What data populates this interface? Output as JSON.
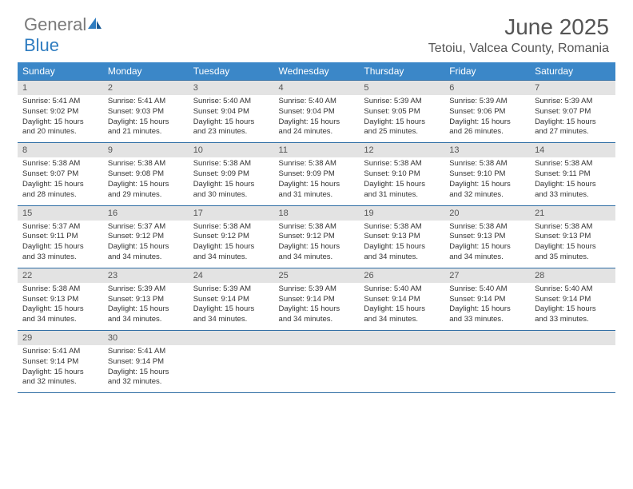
{
  "logo": {
    "text1": "General",
    "text2": "Blue"
  },
  "title": "June 2025",
  "location": "Tetoiu, Valcea County, Romania",
  "colors": {
    "header_bg": "#3b87c8",
    "header_text": "#ffffff",
    "border": "#2e6da4",
    "daynum_bg": "#e3e3e3",
    "body_text": "#333333",
    "title_text": "#555555"
  },
  "dayHeaders": [
    "Sunday",
    "Monday",
    "Tuesday",
    "Wednesday",
    "Thursday",
    "Friday",
    "Saturday"
  ],
  "weeks": [
    [
      {
        "n": "1",
        "sr": "5:41 AM",
        "ss": "9:02 PM",
        "dl": "15 hours and 20 minutes."
      },
      {
        "n": "2",
        "sr": "5:41 AM",
        "ss": "9:03 PM",
        "dl": "15 hours and 21 minutes."
      },
      {
        "n": "3",
        "sr": "5:40 AM",
        "ss": "9:04 PM",
        "dl": "15 hours and 23 minutes."
      },
      {
        "n": "4",
        "sr": "5:40 AM",
        "ss": "9:04 PM",
        "dl": "15 hours and 24 minutes."
      },
      {
        "n": "5",
        "sr": "5:39 AM",
        "ss": "9:05 PM",
        "dl": "15 hours and 25 minutes."
      },
      {
        "n": "6",
        "sr": "5:39 AM",
        "ss": "9:06 PM",
        "dl": "15 hours and 26 minutes."
      },
      {
        "n": "7",
        "sr": "5:39 AM",
        "ss": "9:07 PM",
        "dl": "15 hours and 27 minutes."
      }
    ],
    [
      {
        "n": "8",
        "sr": "5:38 AM",
        "ss": "9:07 PM",
        "dl": "15 hours and 28 minutes."
      },
      {
        "n": "9",
        "sr": "5:38 AM",
        "ss": "9:08 PM",
        "dl": "15 hours and 29 minutes."
      },
      {
        "n": "10",
        "sr": "5:38 AM",
        "ss": "9:09 PM",
        "dl": "15 hours and 30 minutes."
      },
      {
        "n": "11",
        "sr": "5:38 AM",
        "ss": "9:09 PM",
        "dl": "15 hours and 31 minutes."
      },
      {
        "n": "12",
        "sr": "5:38 AM",
        "ss": "9:10 PM",
        "dl": "15 hours and 31 minutes."
      },
      {
        "n": "13",
        "sr": "5:38 AM",
        "ss": "9:10 PM",
        "dl": "15 hours and 32 minutes."
      },
      {
        "n": "14",
        "sr": "5:38 AM",
        "ss": "9:11 PM",
        "dl": "15 hours and 33 minutes."
      }
    ],
    [
      {
        "n": "15",
        "sr": "5:37 AM",
        "ss": "9:11 PM",
        "dl": "15 hours and 33 minutes."
      },
      {
        "n": "16",
        "sr": "5:37 AM",
        "ss": "9:12 PM",
        "dl": "15 hours and 34 minutes."
      },
      {
        "n": "17",
        "sr": "5:38 AM",
        "ss": "9:12 PM",
        "dl": "15 hours and 34 minutes."
      },
      {
        "n": "18",
        "sr": "5:38 AM",
        "ss": "9:12 PM",
        "dl": "15 hours and 34 minutes."
      },
      {
        "n": "19",
        "sr": "5:38 AM",
        "ss": "9:13 PM",
        "dl": "15 hours and 34 minutes."
      },
      {
        "n": "20",
        "sr": "5:38 AM",
        "ss": "9:13 PM",
        "dl": "15 hours and 34 minutes."
      },
      {
        "n": "21",
        "sr": "5:38 AM",
        "ss": "9:13 PM",
        "dl": "15 hours and 35 minutes."
      }
    ],
    [
      {
        "n": "22",
        "sr": "5:38 AM",
        "ss": "9:13 PM",
        "dl": "15 hours and 34 minutes."
      },
      {
        "n": "23",
        "sr": "5:39 AM",
        "ss": "9:13 PM",
        "dl": "15 hours and 34 minutes."
      },
      {
        "n": "24",
        "sr": "5:39 AM",
        "ss": "9:14 PM",
        "dl": "15 hours and 34 minutes."
      },
      {
        "n": "25",
        "sr": "5:39 AM",
        "ss": "9:14 PM",
        "dl": "15 hours and 34 minutes."
      },
      {
        "n": "26",
        "sr": "5:40 AM",
        "ss": "9:14 PM",
        "dl": "15 hours and 34 minutes."
      },
      {
        "n": "27",
        "sr": "5:40 AM",
        "ss": "9:14 PM",
        "dl": "15 hours and 33 minutes."
      },
      {
        "n": "28",
        "sr": "5:40 AM",
        "ss": "9:14 PM",
        "dl": "15 hours and 33 minutes."
      }
    ],
    [
      {
        "n": "29",
        "sr": "5:41 AM",
        "ss": "9:14 PM",
        "dl": "15 hours and 32 minutes."
      },
      {
        "n": "30",
        "sr": "5:41 AM",
        "ss": "9:14 PM",
        "dl": "15 hours and 32 minutes."
      },
      null,
      null,
      null,
      null,
      null
    ]
  ],
  "labels": {
    "sunrise": "Sunrise:",
    "sunset": "Sunset:",
    "daylight": "Daylight:"
  }
}
